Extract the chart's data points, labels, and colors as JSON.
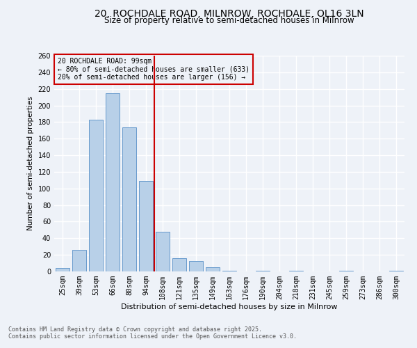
{
  "title": "20, ROCHDALE ROAD, MILNROW, ROCHDALE, OL16 3LN",
  "subtitle": "Size of property relative to semi-detached houses in Milnrow",
  "xlabel": "Distribution of semi-detached houses by size in Milnrow",
  "ylabel": "Number of semi-detached properties",
  "footnote1": "Contains HM Land Registry data © Crown copyright and database right 2025.",
  "footnote2": "Contains public sector information licensed under the Open Government Licence v3.0.",
  "bar_labels": [
    "25sqm",
    "39sqm",
    "53sqm",
    "66sqm",
    "80sqm",
    "94sqm",
    "108sqm",
    "121sqm",
    "135sqm",
    "149sqm",
    "163sqm",
    "176sqm",
    "190sqm",
    "204sqm",
    "218sqm",
    "231sqm",
    "245sqm",
    "259sqm",
    "273sqm",
    "286sqm",
    "300sqm"
  ],
  "bar_values": [
    4,
    26,
    183,
    215,
    174,
    109,
    48,
    16,
    13,
    5,
    1,
    0,
    1,
    0,
    1,
    0,
    0,
    1,
    0,
    0,
    1
  ],
  "bar_color": "#b8d0e8",
  "bar_edgecolor": "#6699cc",
  "vline_x": 5.5,
  "vline_color": "#cc0000",
  "annotation_title": "20 ROCHDALE ROAD: 99sqm",
  "annotation_line1": "← 80% of semi-detached houses are smaller (633)",
  "annotation_line2": "20% of semi-detached houses are larger (156) →",
  "annotation_box_color": "#cc0000",
  "ylim": [
    0,
    260
  ],
  "yticks": [
    0,
    20,
    40,
    60,
    80,
    100,
    120,
    140,
    160,
    180,
    200,
    220,
    240,
    260
  ],
  "background_color": "#eef2f8",
  "grid_color": "#ffffff",
  "title_fontsize": 10,
  "subtitle_fontsize": 8.5,
  "ylabel_fontsize": 7.5,
  "xlabel_fontsize": 8,
  "tick_fontsize": 7,
  "annot_fontsize": 7,
  "footnote_fontsize": 6
}
